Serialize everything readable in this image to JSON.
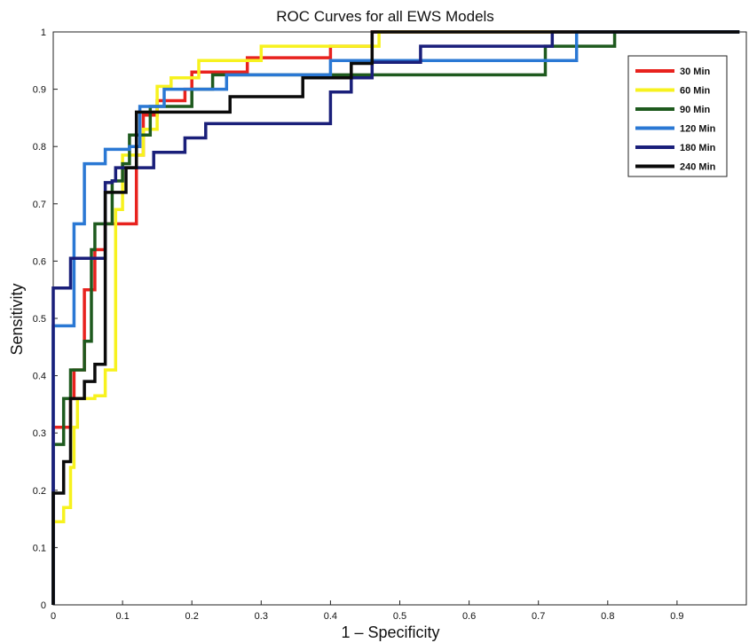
{
  "chart_data": {
    "type": "line",
    "title": "ROC Curves for all EWS Models",
    "xlabel": "1 – Specificity",
    "ylabel": "Sensitivity",
    "xlim": [
      0,
      1
    ],
    "ylim": [
      0,
      1
    ],
    "xticks": [
      "0",
      "0.1",
      "0.2",
      "0.3",
      "0.4",
      "0.5",
      "0.6",
      "0.7",
      "0.8",
      "0.9"
    ],
    "yticks": [
      "0",
      "0.1",
      "0.2",
      "0.3",
      "0.4",
      "0.5",
      "0.6",
      "0.7",
      "0.8",
      "0.9",
      "1"
    ],
    "xtick_values": [
      0,
      0.1,
      0.2,
      0.3,
      0.4,
      0.5,
      0.6,
      0.7,
      0.8,
      0.9
    ],
    "ytick_values": [
      0,
      0.1,
      0.2,
      0.3,
      0.4,
      0.5,
      0.6,
      0.7,
      0.8,
      0.9,
      1
    ],
    "grid": false,
    "legend_position": "top-right",
    "series": [
      {
        "name": "30 Min",
        "color": "#e8221e",
        "points": [
          [
            0,
            0
          ],
          [
            0,
            0.31
          ],
          [
            0.025,
            0.31
          ],
          [
            0.025,
            0.36
          ],
          [
            0.03,
            0.36
          ],
          [
            0.03,
            0.41
          ],
          [
            0.045,
            0.41
          ],
          [
            0.045,
            0.55
          ],
          [
            0.06,
            0.55
          ],
          [
            0.06,
            0.62
          ],
          [
            0.075,
            0.62
          ],
          [
            0.075,
            0.665
          ],
          [
            0.12,
            0.665
          ],
          [
            0.12,
            0.785
          ],
          [
            0.13,
            0.785
          ],
          [
            0.13,
            0.855
          ],
          [
            0.15,
            0.855
          ],
          [
            0.15,
            0.88
          ],
          [
            0.19,
            0.88
          ],
          [
            0.19,
            0.9
          ],
          [
            0.2,
            0.9
          ],
          [
            0.2,
            0.93
          ],
          [
            0.28,
            0.93
          ],
          [
            0.28,
            0.955
          ],
          [
            0.4,
            0.955
          ],
          [
            0.4,
            0.975
          ],
          [
            0.46,
            0.975
          ],
          [
            0.46,
            1
          ],
          [
            0.99,
            1
          ]
        ]
      },
      {
        "name": "60 Min",
        "color": "#f7f21e",
        "points": [
          [
            0,
            0
          ],
          [
            0,
            0.145
          ],
          [
            0.015,
            0.145
          ],
          [
            0.015,
            0.17
          ],
          [
            0.025,
            0.17
          ],
          [
            0.025,
            0.24
          ],
          [
            0.03,
            0.24
          ],
          [
            0.03,
            0.31
          ],
          [
            0.035,
            0.31
          ],
          [
            0.035,
            0.36
          ],
          [
            0.06,
            0.36
          ],
          [
            0.06,
            0.365
          ],
          [
            0.075,
            0.365
          ],
          [
            0.075,
            0.41
          ],
          [
            0.09,
            0.41
          ],
          [
            0.09,
            0.69
          ],
          [
            0.1,
            0.69
          ],
          [
            0.1,
            0.785
          ],
          [
            0.13,
            0.785
          ],
          [
            0.13,
            0.83
          ],
          [
            0.15,
            0.83
          ],
          [
            0.15,
            0.905
          ],
          [
            0.17,
            0.905
          ],
          [
            0.17,
            0.92
          ],
          [
            0.21,
            0.92
          ],
          [
            0.21,
            0.95
          ],
          [
            0.3,
            0.95
          ],
          [
            0.3,
            0.975
          ],
          [
            0.47,
            0.975
          ],
          [
            0.47,
            1
          ],
          [
            0.99,
            1
          ]
        ]
      },
      {
        "name": "90 Min",
        "color": "#1e5a1e",
        "points": [
          [
            0,
            0
          ],
          [
            0,
            0.28
          ],
          [
            0.015,
            0.28
          ],
          [
            0.015,
            0.36
          ],
          [
            0.025,
            0.36
          ],
          [
            0.025,
            0.41
          ],
          [
            0.045,
            0.41
          ],
          [
            0.045,
            0.46
          ],
          [
            0.055,
            0.46
          ],
          [
            0.055,
            0.62
          ],
          [
            0.06,
            0.62
          ],
          [
            0.06,
            0.665
          ],
          [
            0.085,
            0.665
          ],
          [
            0.085,
            0.74
          ],
          [
            0.1,
            0.74
          ],
          [
            0.1,
            0.77
          ],
          [
            0.11,
            0.77
          ],
          [
            0.11,
            0.82
          ],
          [
            0.14,
            0.82
          ],
          [
            0.14,
            0.87
          ],
          [
            0.2,
            0.87
          ],
          [
            0.2,
            0.9
          ],
          [
            0.23,
            0.9
          ],
          [
            0.23,
            0.925
          ],
          [
            0.41,
            0.925
          ],
          [
            0.41,
            0.925
          ],
          [
            0.71,
            0.925
          ],
          [
            0.71,
            0.975
          ],
          [
            0.81,
            0.975
          ],
          [
            0.81,
            1
          ],
          [
            0.99,
            1
          ]
        ]
      },
      {
        "name": "120 Min",
        "color": "#2a78d4",
        "points": [
          [
            0,
            0
          ],
          [
            0,
            0.487
          ],
          [
            0.03,
            0.487
          ],
          [
            0.03,
            0.665
          ],
          [
            0.045,
            0.665
          ],
          [
            0.045,
            0.77
          ],
          [
            0.075,
            0.77
          ],
          [
            0.075,
            0.795
          ],
          [
            0.11,
            0.795
          ],
          [
            0.11,
            0.8
          ],
          [
            0.125,
            0.8
          ],
          [
            0.125,
            0.87
          ],
          [
            0.16,
            0.87
          ],
          [
            0.16,
            0.9
          ],
          [
            0.25,
            0.9
          ],
          [
            0.25,
            0.925
          ],
          [
            0.4,
            0.925
          ],
          [
            0.4,
            0.95
          ],
          [
            0.72,
            0.95
          ],
          [
            0.72,
            0.95
          ],
          [
            0.755,
            0.95
          ],
          [
            0.755,
            1
          ],
          [
            0.99,
            1
          ]
        ]
      },
      {
        "name": "180 Min",
        "color": "#1a1f7a",
        "points": [
          [
            0,
            0
          ],
          [
            0,
            0.553
          ],
          [
            0.025,
            0.553
          ],
          [
            0.025,
            0.605
          ],
          [
            0.075,
            0.605
          ],
          [
            0.075,
            0.737
          ],
          [
            0.085,
            0.737
          ],
          [
            0.085,
            0.74
          ],
          [
            0.09,
            0.74
          ],
          [
            0.09,
            0.763
          ],
          [
            0.145,
            0.763
          ],
          [
            0.145,
            0.79
          ],
          [
            0.19,
            0.79
          ],
          [
            0.19,
            0.815
          ],
          [
            0.22,
            0.815
          ],
          [
            0.22,
            0.84
          ],
          [
            0.4,
            0.84
          ],
          [
            0.4,
            0.895
          ],
          [
            0.43,
            0.895
          ],
          [
            0.43,
            0.92
          ],
          [
            0.46,
            0.92
          ],
          [
            0.46,
            0.947
          ],
          [
            0.53,
            0.947
          ],
          [
            0.53,
            0.975
          ],
          [
            0.72,
            0.975
          ],
          [
            0.72,
            1
          ],
          [
            0.99,
            1
          ]
        ]
      },
      {
        "name": "240 Min",
        "color": "#0a0a0a",
        "points": [
          [
            0,
            0
          ],
          [
            0,
            0.195
          ],
          [
            0.015,
            0.195
          ],
          [
            0.015,
            0.25
          ],
          [
            0.025,
            0.25
          ],
          [
            0.025,
            0.36
          ],
          [
            0.045,
            0.36
          ],
          [
            0.045,
            0.39
          ],
          [
            0.06,
            0.39
          ],
          [
            0.06,
            0.42
          ],
          [
            0.075,
            0.42
          ],
          [
            0.075,
            0.72
          ],
          [
            0.105,
            0.72
          ],
          [
            0.105,
            0.763
          ],
          [
            0.12,
            0.763
          ],
          [
            0.12,
            0.86
          ],
          [
            0.255,
            0.86
          ],
          [
            0.255,
            0.887
          ],
          [
            0.36,
            0.887
          ],
          [
            0.36,
            0.92
          ],
          [
            0.43,
            0.92
          ],
          [
            0.43,
            0.945
          ],
          [
            0.46,
            0.945
          ],
          [
            0.46,
            1
          ],
          [
            0.99,
            1
          ]
        ]
      }
    ]
  }
}
